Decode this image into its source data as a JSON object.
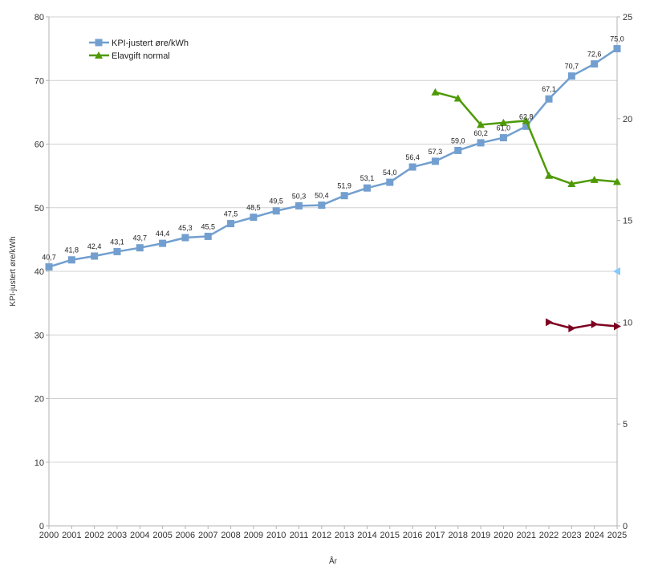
{
  "chart_data": {
    "type": "line",
    "title": "",
    "xlabel": "År",
    "ylabel": "KPI-justert øre/kWh",
    "ylim": [
      0,
      80
    ],
    "y2lim": [
      0,
      25
    ],
    "yticks": [
      0,
      10,
      20,
      30,
      40,
      50,
      60,
      70,
      80
    ],
    "y2ticks": [
      0,
      5,
      10,
      15,
      20,
      25
    ],
    "grid": true,
    "legend_position": "top-left-inside",
    "categories": [
      "2000",
      "2001",
      "2002",
      "2003",
      "2004",
      "2005",
      "2006",
      "2007",
      "2008",
      "2009",
      "2010",
      "2011",
      "2012",
      "2013",
      "2014",
      "2015",
      "2016",
      "2017",
      "2018",
      "2019",
      "2020",
      "2021",
      "2022",
      "2023",
      "2024",
      "2025"
    ],
    "series": [
      {
        "name": "KPI-justert øre/kWh",
        "axis": "left",
        "color": "#729fcf",
        "marker": "square",
        "show_labels": true,
        "values": [
          40.7,
          41.8,
          42.4,
          43.1,
          43.7,
          44.4,
          45.3,
          45.5,
          47.5,
          48.5,
          49.5,
          50.3,
          50.4,
          51.9,
          53.1,
          54.0,
          56.4,
          57.3,
          59.0,
          60.2,
          61.0,
          62.8,
          67.1,
          70.7,
          72.6,
          75.0
        ]
      },
      {
        "name": "Elavgift normal",
        "axis": "right",
        "color": "#4e9a06",
        "marker": "triangle-up",
        "show_labels": false,
        "values": [
          null,
          null,
          null,
          null,
          null,
          null,
          null,
          null,
          null,
          null,
          null,
          null,
          null,
          null,
          null,
          null,
          null,
          21.3,
          21.0,
          19.7,
          19.8,
          19.9,
          17.2,
          16.8,
          17.0,
          16.9
        ]
      },
      {
        "name": "",
        "axis": "right",
        "color": "#7e0021",
        "marker": "triangle-right",
        "show_labels": false,
        "in_legend": false,
        "values": [
          null,
          null,
          null,
          null,
          null,
          null,
          null,
          null,
          null,
          null,
          null,
          null,
          null,
          null,
          null,
          null,
          null,
          null,
          null,
          null,
          null,
          null,
          10.0,
          9.7,
          9.9,
          9.8
        ]
      },
      {
        "name": "",
        "axis": "right",
        "color": "#83caff",
        "marker": "triangle-left",
        "show_labels": false,
        "in_legend": false,
        "values": [
          null,
          null,
          null,
          null,
          null,
          null,
          null,
          null,
          null,
          null,
          null,
          null,
          null,
          null,
          null,
          null,
          null,
          null,
          null,
          null,
          null,
          null,
          null,
          null,
          null,
          12.5
        ]
      }
    ]
  }
}
